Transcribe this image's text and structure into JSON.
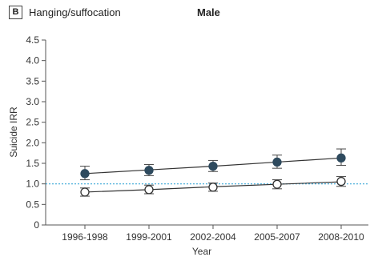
{
  "panel": {
    "label": "B",
    "title": "Hanging/suffocation",
    "subtitle": "Male"
  },
  "chart_data": {
    "type": "line",
    "categories": [
      "1996-1998",
      "1999-2001",
      "2002-2004",
      "2005-2007",
      "2008-2010"
    ],
    "xlabel": "Year",
    "ylabel": "Suicide IRR",
    "ylim": [
      0,
      4.5
    ],
    "yticks": [
      "0",
      "0.5",
      "1.0",
      "1.5",
      "2.0",
      "2.5",
      "3.0",
      "3.5",
      "4.0",
      "4.5"
    ],
    "reference_line": 1.0,
    "grid": false,
    "series": [
      {
        "marker": "filled-circle",
        "color": "#2e4a5e",
        "values": [
          1.25,
          1.33,
          1.43,
          1.53,
          1.63
        ],
        "ci_lower": [
          1.1,
          1.2,
          1.3,
          1.38,
          1.45
        ],
        "ci_upper": [
          1.43,
          1.47,
          1.57,
          1.7,
          1.85
        ],
        "trend": [
          1.25,
          1.34,
          1.43,
          1.53,
          1.63
        ]
      },
      {
        "marker": "open-circle",
        "color": "#2e4a5e",
        "values": [
          0.8,
          0.86,
          0.92,
          0.99,
          1.06
        ],
        "ci_lower": [
          0.7,
          0.76,
          0.82,
          0.88,
          0.94
        ],
        "ci_upper": [
          0.9,
          0.97,
          1.02,
          1.1,
          1.18
        ],
        "trend": [
          0.8,
          0.86,
          0.93,
          0.99,
          1.05
        ]
      }
    ],
    "colors": {
      "axis": "#555555",
      "reference": "#3aa8d8",
      "line": "#333333"
    }
  }
}
